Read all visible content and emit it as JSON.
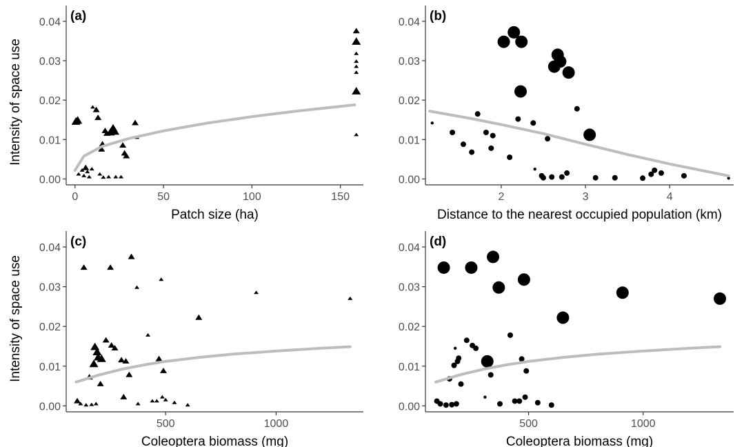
{
  "figure": {
    "y_axis_label": "Intensity of space use"
  },
  "styles": {
    "axis_color": "#333333",
    "tick_label_color": "#4d4d4d",
    "point_color": "#000000",
    "fit_color": "#bdbdbd"
  },
  "chart_data": [
    {
      "panel": "(a)",
      "type": "scatter",
      "marker": "triangle",
      "xlabel": "Patch size (ha)",
      "ylabel": "Intensity of space use",
      "xlim": [
        -5,
        163
      ],
      "ylim": [
        -0.0015,
        0.044
      ],
      "xticks": [
        0,
        50,
        100,
        150
      ],
      "xtick_labels": [
        "0",
        "50",
        "100",
        "150"
      ],
      "yticks": [
        0,
        0.01,
        0.02,
        0.03,
        0.04
      ],
      "ytick_labels": [
        "0.00",
        "0.01",
        "0.02",
        "0.03",
        "0.04"
      ],
      "grid": false,
      "legend": "none",
      "points": [
        {
          "x": 0.5,
          "y": 0.0145,
          "size": 3
        },
        {
          "x": 1.5,
          "y": 0.0148,
          "size": 3
        },
        {
          "x": 2,
          "y": 0.0012,
          "size": 1
        },
        {
          "x": 4,
          "y": 0.0022,
          "size": 1
        },
        {
          "x": 5,
          "y": 0.0008,
          "size": 1
        },
        {
          "x": 6,
          "y": 0.0028,
          "size": 2
        },
        {
          "x": 7,
          "y": 0.0018,
          "size": 1
        },
        {
          "x": 8,
          "y": 0.0005,
          "size": 1
        },
        {
          "x": 9.5,
          "y": 0.0025,
          "size": 1
        },
        {
          "x": 10,
          "y": 0.0182,
          "size": 1
        },
        {
          "x": 12,
          "y": 0.0175,
          "size": 2
        },
        {
          "x": 13,
          "y": 0.0155,
          "size": 2
        },
        {
          "x": 14,
          "y": 0.0012,
          "size": 1
        },
        {
          "x": 15,
          "y": 0.0075,
          "size": 2
        },
        {
          "x": 15.5,
          "y": 0.0088,
          "size": 2
        },
        {
          "x": 16,
          "y": 0.0004,
          "size": 1
        },
        {
          "x": 17,
          "y": 0.0122,
          "size": 2
        },
        {
          "x": 18,
          "y": 0.0115,
          "size": 2
        },
        {
          "x": 19,
          "y": 0.0005,
          "size": 1
        },
        {
          "x": 20,
          "y": 0.0118,
          "size": 3
        },
        {
          "x": 21.5,
          "y": 0.0128,
          "size": 3
        },
        {
          "x": 22.5,
          "y": 0.012,
          "size": 3
        },
        {
          "x": 23,
          "y": 0.0005,
          "size": 1
        },
        {
          "x": 26,
          "y": 0.0005,
          "size": 1
        },
        {
          "x": 27,
          "y": 0.0085,
          "size": 2
        },
        {
          "x": 28,
          "y": 0.0065,
          "size": 2
        },
        {
          "x": 29,
          "y": 0.0058,
          "size": 2
        },
        {
          "x": 34,
          "y": 0.0142,
          "size": 2
        },
        {
          "x": 35,
          "y": 0.0105,
          "size": 1
        },
        {
          "x": 159,
          "y": 0.0375,
          "size": 2
        },
        {
          "x": 159,
          "y": 0.0348,
          "size": 3
        },
        {
          "x": 159,
          "y": 0.0318,
          "size": 1
        },
        {
          "x": 159,
          "y": 0.0298,
          "size": 1
        },
        {
          "x": 159,
          "y": 0.0285,
          "size": 1
        },
        {
          "x": 159,
          "y": 0.027,
          "size": 1
        },
        {
          "x": 159,
          "y": 0.0222,
          "size": 3
        },
        {
          "x": 159,
          "y": 0.0112,
          "size": 1
        }
      ],
      "fit": {
        "x": [
          0,
          5,
          15,
          30,
          50,
          75,
          100,
          125,
          158
        ],
        "y": [
          0.0022,
          0.0058,
          0.0082,
          0.0102,
          0.0122,
          0.0142,
          0.0158,
          0.0172,
          0.0188
        ]
      }
    },
    {
      "panel": "(b)",
      "type": "scatter",
      "marker": "circle",
      "xlabel": "Distance to the nearest occupied population (km)",
      "ylabel": "",
      "xlim": [
        1.1,
        4.76
      ],
      "ylim": [
        -0.0015,
        0.044
      ],
      "xticks": [
        2,
        3,
        4
      ],
      "xtick_labels": [
        "2",
        "3",
        "4"
      ],
      "yticks": [
        0,
        0.01,
        0.02,
        0.03,
        0.04
      ],
      "ytick_labels": [
        "0.00",
        "0.01",
        "0.02",
        "0.03",
        "0.04"
      ],
      "grid": false,
      "legend": "none",
      "points": [
        {
          "x": 1.18,
          "y": 0.0142,
          "size": 1
        },
        {
          "x": 1.42,
          "y": 0.0118,
          "size": 2
        },
        {
          "x": 1.55,
          "y": 0.0088,
          "size": 2
        },
        {
          "x": 1.65,
          "y": 0.0068,
          "size": 2
        },
        {
          "x": 1.72,
          "y": 0.0165,
          "size": 2
        },
        {
          "x": 1.82,
          "y": 0.0118,
          "size": 2
        },
        {
          "x": 1.88,
          "y": 0.0078,
          "size": 2
        },
        {
          "x": 1.9,
          "y": 0.011,
          "size": 2
        },
        {
          "x": 2.03,
          "y": 0.0348,
          "size": 4
        },
        {
          "x": 2.1,
          "y": 0.0055,
          "size": 2
        },
        {
          "x": 2.15,
          "y": 0.0372,
          "size": 4
        },
        {
          "x": 2.2,
          "y": 0.0152,
          "size": 2
        },
        {
          "x": 2.23,
          "y": 0.0222,
          "size": 4
        },
        {
          "x": 2.24,
          "y": 0.0348,
          "size": 4
        },
        {
          "x": 2.38,
          "y": 0.0142,
          "size": 2
        },
        {
          "x": 2.4,
          "y": 0.0025,
          "size": 1
        },
        {
          "x": 2.48,
          "y": 0.0008,
          "size": 2
        },
        {
          "x": 2.5,
          "y": 0.0003,
          "size": 2
        },
        {
          "x": 2.55,
          "y": 0.0102,
          "size": 2
        },
        {
          "x": 2.6,
          "y": 0.0005,
          "size": 2
        },
        {
          "x": 2.63,
          "y": 0.0285,
          "size": 4
        },
        {
          "x": 2.67,
          "y": 0.0315,
          "size": 4
        },
        {
          "x": 2.7,
          "y": 0.0298,
          "size": 4
        },
        {
          "x": 2.72,
          "y": 0.0005,
          "size": 2
        },
        {
          "x": 2.78,
          "y": 0.0015,
          "size": 2
        },
        {
          "x": 2.8,
          "y": 0.027,
          "size": 4
        },
        {
          "x": 2.9,
          "y": 0.0178,
          "size": 2
        },
        {
          "x": 3.05,
          "y": 0.0112,
          "size": 4
        },
        {
          "x": 3.12,
          "y": 0.0003,
          "size": 2
        },
        {
          "x": 3.35,
          "y": 0.0003,
          "size": 2
        },
        {
          "x": 3.68,
          "y": 0.0002,
          "size": 2
        },
        {
          "x": 3.78,
          "y": 0.0012,
          "size": 2
        },
        {
          "x": 3.82,
          "y": 0.0022,
          "size": 2
        },
        {
          "x": 3.9,
          "y": 0.0015,
          "size": 2
        },
        {
          "x": 4.17,
          "y": 0.0008,
          "size": 2
        },
        {
          "x": 4.7,
          "y": 0.0002,
          "size": 1
        }
      ],
      "fit": {
        "x": [
          1.15,
          1.6,
          2,
          2.5,
          3,
          3.5,
          4,
          4.7
        ],
        "y": [
          0.0172,
          0.0155,
          0.0138,
          0.0115,
          0.0088,
          0.0062,
          0.0038,
          0.0008
        ]
      }
    },
    {
      "panel": "(c)",
      "type": "scatter",
      "marker": "triangle",
      "xlabel": "Coleoptera biomass (mg)",
      "ylabel": "Intensity of space use",
      "xlim": [
        50,
        1395
      ],
      "ylim": [
        -0.0015,
        0.044
      ],
      "xticks": [
        500,
        1000
      ],
      "xtick_labels": [
        "500",
        "1000"
      ],
      "yticks": [
        0,
        0.01,
        0.02,
        0.03,
        0.04
      ],
      "ytick_labels": [
        "0.00",
        "0.01",
        "0.02",
        "0.03",
        "0.04"
      ],
      "grid": false,
      "legend": "none",
      "points": [
        {
          "x": 100,
          "y": 0.0012,
          "size": 2
        },
        {
          "x": 115,
          "y": 0.0005,
          "size": 1
        },
        {
          "x": 130,
          "y": 0.0348,
          "size": 2
        },
        {
          "x": 140,
          "y": 0.0002,
          "size": 1
        },
        {
          "x": 155,
          "y": 0.0072,
          "size": 2
        },
        {
          "x": 165,
          "y": 0.0003,
          "size": 1
        },
        {
          "x": 175,
          "y": 0.0105,
          "size": 3
        },
        {
          "x": 180,
          "y": 0.0148,
          "size": 3
        },
        {
          "x": 185,
          "y": 0.0005,
          "size": 1
        },
        {
          "x": 190,
          "y": 0.0135,
          "size": 3
        },
        {
          "x": 195,
          "y": 0.0122,
          "size": 3
        },
        {
          "x": 205,
          "y": 0.0055,
          "size": 2
        },
        {
          "x": 210,
          "y": 0.0118,
          "size": 3
        },
        {
          "x": 230,
          "y": 0.0165,
          "size": 2
        },
        {
          "x": 250,
          "y": 0.0348,
          "size": 2
        },
        {
          "x": 255,
          "y": 0.0152,
          "size": 2
        },
        {
          "x": 270,
          "y": 0.0145,
          "size": 2
        },
        {
          "x": 300,
          "y": 0.0115,
          "size": 2
        },
        {
          "x": 310,
          "y": 0.0022,
          "size": 2
        },
        {
          "x": 320,
          "y": 0.0112,
          "size": 2
        },
        {
          "x": 335,
          "y": 0.0078,
          "size": 2
        },
        {
          "x": 345,
          "y": 0.0375,
          "size": 2
        },
        {
          "x": 370,
          "y": 0.0298,
          "size": 1
        },
        {
          "x": 375,
          "y": 0.0005,
          "size": 1
        },
        {
          "x": 420,
          "y": 0.0178,
          "size": 1
        },
        {
          "x": 440,
          "y": 0.0012,
          "size": 1
        },
        {
          "x": 460,
          "y": 0.0012,
          "size": 1
        },
        {
          "x": 470,
          "y": 0.0118,
          "size": 2
        },
        {
          "x": 480,
          "y": 0.0318,
          "size": 1
        },
        {
          "x": 485,
          "y": 0.0022,
          "size": 1
        },
        {
          "x": 490,
          "y": 0.0088,
          "size": 2
        },
        {
          "x": 500,
          "y": 0.0015,
          "size": 1
        },
        {
          "x": 540,
          "y": 0.0008,
          "size": 1
        },
        {
          "x": 600,
          "y": 0.0002,
          "size": 1
        },
        {
          "x": 650,
          "y": 0.0222,
          "size": 2
        },
        {
          "x": 910,
          "y": 0.0285,
          "size": 1
        },
        {
          "x": 1335,
          "y": 0.027,
          "size": 1
        }
      ],
      "fit": {
        "x": [
          95,
          200,
          300,
          400,
          500,
          650,
          800,
          1000,
          1200,
          1335
        ],
        "y": [
          0.006,
          0.0078,
          0.0092,
          0.0103,
          0.0112,
          0.0122,
          0.013,
          0.0138,
          0.0145,
          0.0149
        ]
      }
    },
    {
      "panel": "(d)",
      "type": "scatter",
      "marker": "circle",
      "xlabel": "Coleoptera biomass (mg)",
      "ylabel": "",
      "xlim": [
        50,
        1395
      ],
      "ylim": [
        -0.0015,
        0.044
      ],
      "xticks": [
        500,
        1000
      ],
      "xtick_labels": [
        "500",
        "1000"
      ],
      "yticks": [
        0,
        0.01,
        0.02,
        0.03,
        0.04
      ],
      "ytick_labels": [
        "0.00",
        "0.01",
        "0.02",
        "0.03",
        "0.04"
      ],
      "grid": false,
      "legend": "none",
      "points": [
        {
          "x": 100,
          "y": 0.0012,
          "size": 2
        },
        {
          "x": 115,
          "y": 0.0005,
          "size": 2
        },
        {
          "x": 130,
          "y": 0.0348,
          "size": 4
        },
        {
          "x": 140,
          "y": 0.0002,
          "size": 2
        },
        {
          "x": 155,
          "y": 0.0068,
          "size": 2
        },
        {
          "x": 165,
          "y": 0.0003,
          "size": 2
        },
        {
          "x": 175,
          "y": 0.0102,
          "size": 2
        },
        {
          "x": 180,
          "y": 0.0145,
          "size": 1
        },
        {
          "x": 185,
          "y": 0.0005,
          "size": 2
        },
        {
          "x": 190,
          "y": 0.0112,
          "size": 2
        },
        {
          "x": 195,
          "y": 0.012,
          "size": 2
        },
        {
          "x": 205,
          "y": 0.0055,
          "size": 2
        },
        {
          "x": 230,
          "y": 0.0165,
          "size": 2
        },
        {
          "x": 250,
          "y": 0.0348,
          "size": 4
        },
        {
          "x": 255,
          "y": 0.0152,
          "size": 2
        },
        {
          "x": 270,
          "y": 0.0145,
          "size": 2
        },
        {
          "x": 320,
          "y": 0.0112,
          "size": 4
        },
        {
          "x": 310,
          "y": 0.0022,
          "size": 1
        },
        {
          "x": 335,
          "y": 0.0078,
          "size": 2
        },
        {
          "x": 345,
          "y": 0.0375,
          "size": 4
        },
        {
          "x": 370,
          "y": 0.0298,
          "size": 4
        },
        {
          "x": 375,
          "y": 0.0005,
          "size": 2
        },
        {
          "x": 420,
          "y": 0.0178,
          "size": 2
        },
        {
          "x": 440,
          "y": 0.0012,
          "size": 2
        },
        {
          "x": 460,
          "y": 0.0012,
          "size": 2
        },
        {
          "x": 470,
          "y": 0.0118,
          "size": 2
        },
        {
          "x": 480,
          "y": 0.0318,
          "size": 4
        },
        {
          "x": 485,
          "y": 0.0022,
          "size": 2
        },
        {
          "x": 490,
          "y": 0.0088,
          "size": 2
        },
        {
          "x": 540,
          "y": 0.0008,
          "size": 2
        },
        {
          "x": 600,
          "y": 0.0002,
          "size": 2
        },
        {
          "x": 650,
          "y": 0.0222,
          "size": 4
        },
        {
          "x": 910,
          "y": 0.0285,
          "size": 4
        },
        {
          "x": 1335,
          "y": 0.027,
          "size": 4
        }
      ],
      "fit": {
        "x": [
          95,
          200,
          300,
          400,
          500,
          650,
          800,
          1000,
          1200,
          1335
        ],
        "y": [
          0.006,
          0.0078,
          0.0092,
          0.0103,
          0.0112,
          0.0122,
          0.013,
          0.0138,
          0.0145,
          0.0149
        ]
      }
    }
  ]
}
